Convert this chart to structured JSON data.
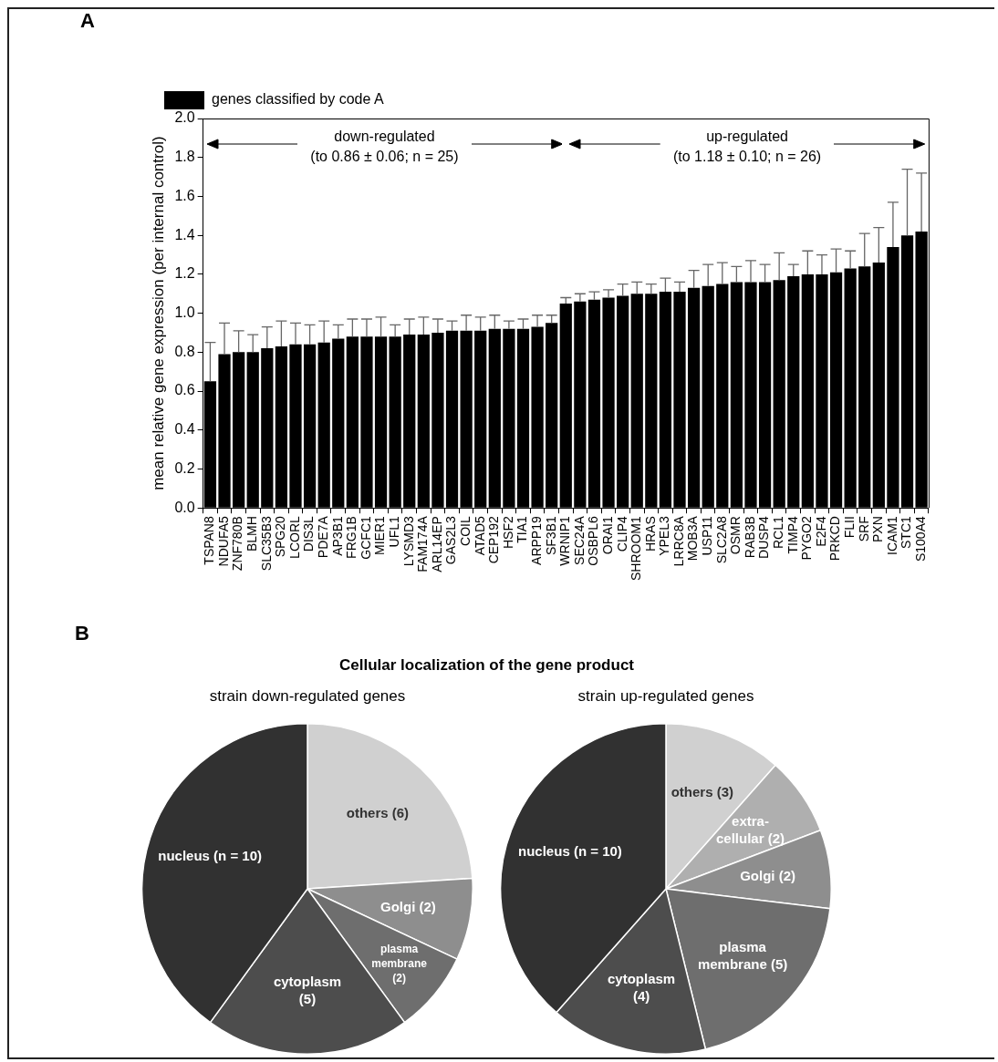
{
  "chart_data": [
    {
      "type": "bar",
      "ylabel": "mean relative gene expression (per internal control)",
      "categories": [
        "TSPAN8",
        "NDUFA5",
        "ZNF780B",
        "BLMH",
        "SLC35B3",
        "SPG20",
        "LCORL",
        "DIS3L",
        "PDE7A",
        "AP3B1",
        "FRG1B",
        "GCFC1",
        "MIER1",
        "UFL1",
        "LYSMD3",
        "FAM174A",
        "ARL14EP",
        "GAS2L3",
        "COIL",
        "ATAD5",
        "CEP192",
        "HSF2",
        "TIA1",
        "ARPP19",
        "SF3B1",
        "WRNIP1",
        "SEC24A",
        "OSBPL6",
        "ORAI1",
        "CLIP4",
        "SHROOM1",
        "HRAS",
        "YPEL3",
        "LRRC8A",
        "MOB3A",
        "USP11",
        "SLC2A8",
        "OSMR",
        "RAB3B",
        "DUSP4",
        "RCL1",
        "TIMP4",
        "PYGO2",
        "E2F4",
        "PRKCD",
        "FLII",
        "SRF",
        "PXN",
        "ICAM1",
        "STC1",
        "S100A4"
      ],
      "series": [
        {
          "name": "genes classified by code A",
          "color": "#000000",
          "values": [
            0.65,
            0.79,
            0.8,
            0.8,
            0.82,
            0.83,
            0.84,
            0.84,
            0.85,
            0.87,
            0.88,
            0.88,
            0.88,
            0.88,
            0.89,
            0.89,
            0.9,
            0.91,
            0.91,
            0.91,
            0.92,
            0.92,
            0.92,
            0.93,
            0.95,
            1.05,
            1.06,
            1.07,
            1.08,
            1.09,
            1.1,
            1.1,
            1.11,
            1.11,
            1.13,
            1.14,
            1.15,
            1.16,
            1.16,
            1.16,
            1.17,
            1.19,
            1.2,
            1.2,
            1.21,
            1.23,
            1.24,
            1.26,
            1.34,
            1.4,
            1.42
          ],
          "errors": [
            [
              0.65,
              0.85
            ],
            [
              0.79,
              0.95
            ],
            [
              0.8,
              0.91
            ],
            [
              0.8,
              0.89
            ],
            [
              0.82,
              0.93
            ],
            [
              0.83,
              0.96
            ],
            [
              0.84,
              0.95
            ],
            [
              0.84,
              0.94
            ],
            [
              0.85,
              0.96
            ],
            [
              0.87,
              0.94
            ],
            [
              0.88,
              0.97
            ],
            [
              0.88,
              0.97
            ],
            [
              0.88,
              0.98
            ],
            [
              0.88,
              0.94
            ],
            [
              0.89,
              0.97
            ],
            [
              0.89,
              0.98
            ],
            [
              0.9,
              0.97
            ],
            [
              0.91,
              0.96
            ],
            [
              0.91,
              0.99
            ],
            [
              0.91,
              0.98
            ],
            [
              0.92,
              0.99
            ],
            [
              0.92,
              0.96
            ],
            [
              0.92,
              0.97
            ],
            [
              0.93,
              0.99
            ],
            [
              0.95,
              0.99
            ],
            [
              1.05,
              1.08
            ],
            [
              1.06,
              1.1
            ],
            [
              1.07,
              1.11
            ],
            [
              1.08,
              1.12
            ],
            [
              1.09,
              1.15
            ],
            [
              1.1,
              1.16
            ],
            [
              1.1,
              1.15
            ],
            [
              1.11,
              1.18
            ],
            [
              1.11,
              1.16
            ],
            [
              1.13,
              1.22
            ],
            [
              1.14,
              1.25
            ],
            [
              1.15,
              1.26
            ],
            [
              1.16,
              1.24
            ],
            [
              1.16,
              1.27
            ],
            [
              1.16,
              1.25
            ],
            [
              1.17,
              1.31
            ],
            [
              1.19,
              1.25
            ],
            [
              1.2,
              1.32
            ],
            [
              1.2,
              1.3
            ],
            [
              1.21,
              1.33
            ],
            [
              1.23,
              1.32
            ],
            [
              1.24,
              1.41
            ],
            [
              1.26,
              1.44
            ],
            [
              1.34,
              1.57
            ],
            [
              1.4,
              1.74
            ],
            [
              1.42,
              1.72
            ]
          ]
        }
      ],
      "ylim": [
        0,
        2
      ],
      "yticks": [
        {
          "value": 0,
          "label": "0.0"
        },
        {
          "value": 0.2,
          "label": "0.2"
        },
        {
          "value": 0.4,
          "label": "0.4"
        },
        {
          "value": 0.6,
          "label": "0.6"
        },
        {
          "value": 0.8,
          "label": "0.8"
        },
        {
          "value": 1,
          "label": "1.0"
        },
        {
          "value": 1.2,
          "label": "1.2"
        },
        {
          "value": 1.4,
          "label": "1.4"
        },
        {
          "value": 1.6,
          "label": "1.6"
        },
        {
          "value": 1.8,
          "label": "1.8"
        },
        {
          "value": 2,
          "label": "2.0"
        }
      ],
      "legend": "top left",
      "annotations": [
        "A",
        "down-regulated\n(to 0.86 ± 0.06; n = 25)",
        "up-regulated\n(to 1.18 ± 0.10; n = 26)"
      ]
    },
    {
      "type": "pie",
      "title": "Cellular localization of the gene product",
      "subtitle": "strain down-regulated genes",
      "categories": [
        "others (6)",
        "Golgi (2)",
        "plasma\nmembrane\n(2)",
        "cytoplasm\n(5)",
        "nucleus (n = 10)"
      ],
      "values": [
        6,
        2,
        2,
        5,
        10
      ],
      "colors": [
        "#d0d0d0",
        "#8e8e8e",
        "#6e6e6e",
        "#4d4d4d",
        "#313131"
      ],
      "annotations": [
        "B"
      ]
    },
    {
      "type": "pie",
      "subtitle": "strain up-regulated genes",
      "categories": [
        "others (3)",
        "extra-\ncellular (2)",
        "Golgi (2)",
        "plasma\nmembrane (5)",
        "cytoplasm\n(4)",
        "nucleus (n = 10)"
      ],
      "values": [
        3,
        2,
        2,
        5,
        4,
        10
      ],
      "colors": [
        "#d0d0d0",
        "#afafaf",
        "#8e8e8e",
        "#6e6e6e",
        "#4d4d4d",
        "#313131"
      ]
    }
  ]
}
